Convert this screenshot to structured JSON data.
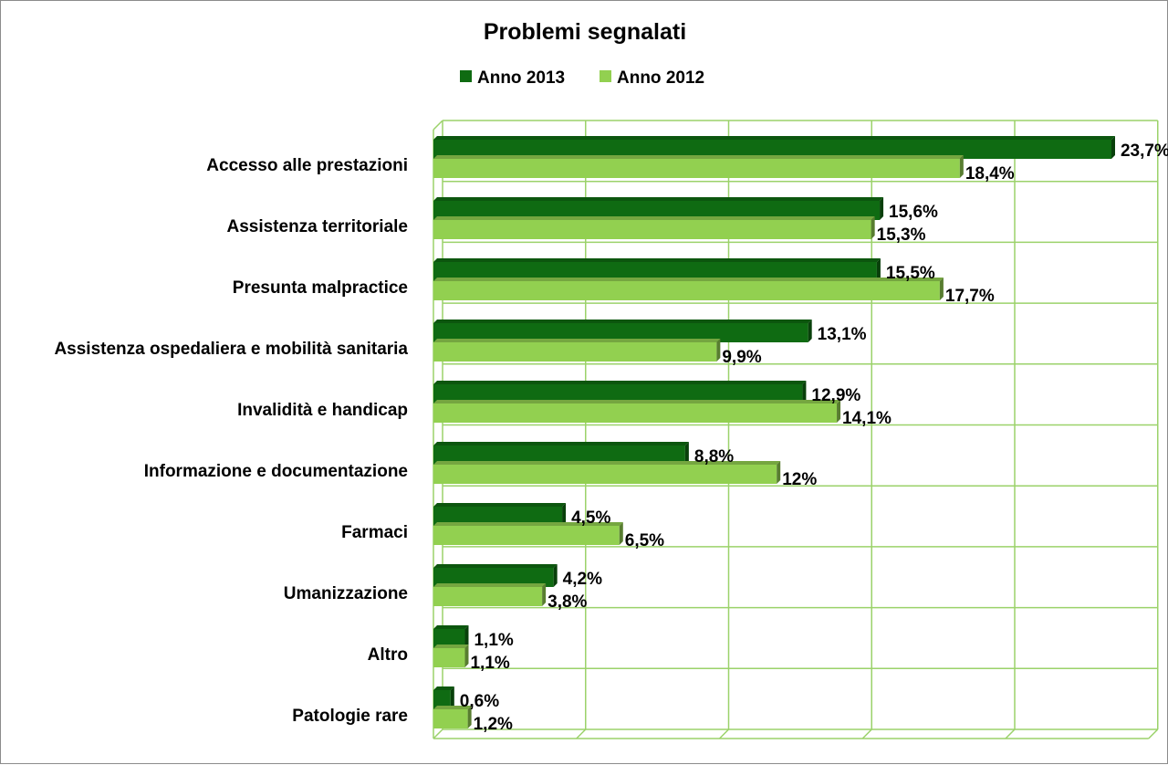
{
  "chart_data": {
    "type": "bar",
    "orientation": "horizontal",
    "title": "Problemi segnalati",
    "categories": [
      "Accesso alle prestazioni",
      "Assistenza territoriale",
      "Presunta malpractice",
      "Assistenza ospedaliera e mobilità sanitaria",
      "Invalidità e handicap",
      "Informazione e documentazione",
      "Farmaci",
      "Umanizzazione",
      "Altro",
      "Patologie rare"
    ],
    "series": [
      {
        "name": "Anno 2013",
        "color": "#0f6b12",
        "values": [
          23.7,
          15.6,
          15.5,
          13.1,
          12.9,
          8.8,
          4.5,
          4.2,
          1.1,
          0.6
        ],
        "labels": [
          "23,7%",
          "15,6%",
          "15,5%",
          "13,1%",
          "12,9%",
          "8,8%",
          "4,5%",
          "4,2%",
          "1,1%",
          "0,6%"
        ]
      },
      {
        "name": "Anno 2012",
        "color": "#92d050",
        "values": [
          18.4,
          15.3,
          17.7,
          9.9,
          14.1,
          12,
          6.5,
          3.8,
          1.1,
          1.2
        ],
        "labels": [
          "18,4%",
          "15,3%",
          "17,7%",
          "9,9%",
          "14,1%",
          "12%",
          "6,5%",
          "3,8%",
          "1,1%",
          "1,2%"
        ]
      }
    ],
    "xlim": [
      0,
      25
    ],
    "grid": true,
    "legend_position": "top"
  }
}
